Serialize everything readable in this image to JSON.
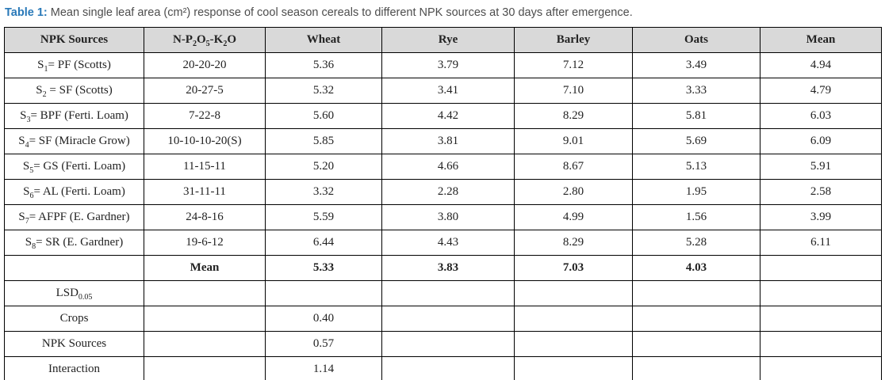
{
  "title": {
    "prefix": "Table 1:",
    "text": " Mean single leaf area (cm²) response of cool season cereals to different NPK sources at 30 days after emergence."
  },
  "colors": {
    "caption_accent": "#2878b8",
    "header_background": "#d9d9d9",
    "border": "#000000",
    "text": "#222222"
  },
  "table": {
    "columns": [
      [
        "NPK Sources"
      ],
      [
        "N-P",
        {
          "sub": "2"
        },
        "O",
        {
          "sub": "5"
        },
        "-K",
        {
          "sub": "2"
        },
        "O"
      ],
      [
        "Wheat"
      ],
      [
        "Rye"
      ],
      [
        "Barley"
      ],
      [
        "Oats"
      ],
      [
        "Mean"
      ]
    ],
    "rows": [
      {
        "label": [
          "S",
          {
            "sub": "1"
          },
          "= PF (Scotts)"
        ],
        "cells": [
          "20-20-20",
          "5.36",
          "3.79",
          "7.12",
          "3.49",
          "4.94"
        ]
      },
      {
        "label": [
          "S",
          {
            "sub": "2"
          },
          " = SF (Scotts)"
        ],
        "cells": [
          "20-27-5",
          "5.32",
          "3.41",
          "7.10",
          "3.33",
          "4.79"
        ]
      },
      {
        "label": [
          "S",
          {
            "sub": "3"
          },
          "= BPF (Ferti. Loam)"
        ],
        "cells": [
          "7-22-8",
          "5.60",
          "4.42",
          "8.29",
          "5.81",
          "6.03"
        ]
      },
      {
        "label": [
          "S",
          {
            "sub": "4"
          },
          "= SF (Miracle Grow)"
        ],
        "cells": [
          "10-10-10-20(S)",
          "5.85",
          "3.81",
          "9.01",
          "5.69",
          "6.09"
        ]
      },
      {
        "label": [
          "S",
          {
            "sub": "5"
          },
          "= GS (Ferti. Loam)"
        ],
        "cells": [
          "11-15-11",
          "5.20",
          "4.66",
          "8.67",
          "5.13",
          "5.91"
        ]
      },
      {
        "label": [
          "S",
          {
            "sub": "6"
          },
          "= AL (Ferti. Loam)"
        ],
        "cells": [
          "31-11-11",
          "3.32",
          "2.28",
          "2.80",
          "1.95",
          "2.58"
        ]
      },
      {
        "label": [
          "S",
          {
            "sub": "7"
          },
          "= AFPF (E. Gardner)"
        ],
        "cells": [
          "24-8-16",
          "5.59",
          "3.80",
          "4.99",
          "1.56",
          "3.99"
        ]
      },
      {
        "label": [
          "S",
          {
            "sub": "8"
          },
          "= SR (E. Gardner)"
        ],
        "cells": [
          "19-6-12",
          "6.44",
          "4.43",
          "8.29",
          "5.28",
          "6.11"
        ]
      },
      {
        "label": [
          ""
        ],
        "cells": [
          "Mean",
          "5.33",
          "3.83",
          "7.03",
          "4.03",
          ""
        ]
      },
      {
        "label": [
          "LSD",
          {
            "sub": "0.05"
          }
        ],
        "cells": [
          "",
          "",
          "",
          "",
          "",
          ""
        ]
      },
      {
        "label": [
          "Crops"
        ],
        "cells": [
          "",
          "0.40",
          "",
          "",
          "",
          ""
        ]
      },
      {
        "label": [
          "NPK Sources"
        ],
        "cells": [
          "",
          "0.57",
          "",
          "",
          "",
          ""
        ]
      },
      {
        "label": [
          "Interaction"
        ],
        "cells": [
          "",
          "1.14",
          "",
          "",
          "",
          ""
        ]
      }
    ]
  }
}
